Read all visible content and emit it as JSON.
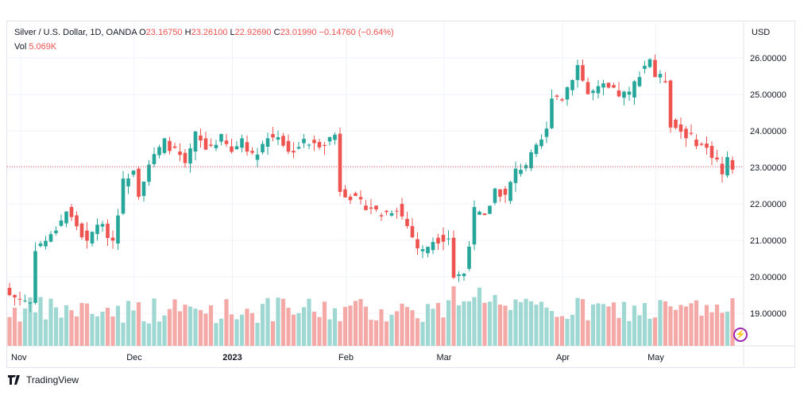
{
  "legend": {
    "symbol": "Silver / U.S. Dollar, 1D, OANDA",
    "open_label": "O",
    "open": "23.16750",
    "high_label": "H",
    "high": "23.26100",
    "low_label": "L",
    "low": "22.92690",
    "close_label": "C",
    "close": "23.01990",
    "change": "−0.14760 (−0.64%)",
    "vol_label": "Vol",
    "vol": "5.069K"
  },
  "currency": "USD",
  "brand": "TradingView",
  "colors": {
    "up": "#26a69a",
    "down": "#ef5350",
    "up_vol": "#9fd8d2",
    "down_vol": "#f4a9a6",
    "grid": "#f0f3fa",
    "price_line": "#ef5350"
  },
  "chart_data": {
    "type": "candlestick",
    "y_ticks": [
      "26.00000",
      "25.00000",
      "24.00000",
      "23.00000",
      "22.00000",
      "21.00000",
      "20.00000",
      "19.00000"
    ],
    "y_tick_values": [
      26,
      25,
      24,
      23,
      22,
      21,
      20,
      19
    ],
    "x_ticks": [
      {
        "label": "Nov",
        "index": 0
      },
      {
        "label": "Dec",
        "index": 22
      },
      {
        "label": "2023",
        "index": 41
      },
      {
        "label": "Feb",
        "index": 63
      },
      {
        "label": "Mar",
        "index": 82
      },
      {
        "label": "Apr",
        "index": 105
      },
      {
        "label": "May",
        "index": 123
      }
    ],
    "last_price": 23.02,
    "close_points": [
      [
        0,
        19.5
      ],
      [
        4,
        19.3
      ],
      [
        5,
        20.8
      ],
      [
        8,
        21.1
      ],
      [
        11,
        21.8
      ],
      [
        13,
        21.4
      ],
      [
        15,
        20.9
      ],
      [
        17,
        21.5
      ],
      [
        20,
        21.0
      ],
      [
        22,
        22.6
      ],
      [
        24,
        23.0
      ],
      [
        25,
        22.3
      ],
      [
        27,
        23.1
      ],
      [
        30,
        23.7
      ],
      [
        33,
        23.3
      ],
      [
        34,
        23.0
      ],
      [
        36,
        23.9
      ],
      [
        38,
        23.5
      ],
      [
        41,
        23.8
      ],
      [
        43,
        23.4
      ],
      [
        45,
        23.8
      ],
      [
        47,
        23.3
      ],
      [
        50,
        23.8
      ],
      [
        52,
        23.9
      ],
      [
        54,
        23.4
      ],
      [
        57,
        23.7
      ],
      [
        59,
        23.6
      ],
      [
        61,
        23.7
      ],
      [
        63,
        23.9
      ],
      [
        64,
        22.4
      ],
      [
        66,
        22.2
      ],
      [
        68,
        22.0
      ],
      [
        70,
        21.9
      ],
      [
        72,
        21.7
      ],
      [
        75,
        21.9
      ],
      [
        77,
        21.4
      ],
      [
        79,
        20.8
      ],
      [
        80,
        20.7
      ],
      [
        82,
        21.0
      ],
      [
        85,
        21.1
      ],
      [
        86,
        20.0
      ],
      [
        88,
        20.1
      ],
      [
        90,
        21.8
      ],
      [
        92,
        21.6
      ],
      [
        94,
        22.4
      ],
      [
        96,
        22.2
      ],
      [
        98,
        22.9
      ],
      [
        100,
        23.1
      ],
      [
        102,
        23.5
      ],
      [
        104,
        24.0
      ],
      [
        105,
        25.0
      ],
      [
        107,
        24.9
      ],
      [
        109,
        25.5
      ],
      [
        110,
        25.8
      ],
      [
        112,
        25.0
      ],
      [
        115,
        25.2
      ],
      [
        118,
        25.0
      ],
      [
        120,
        25.0
      ],
      [
        122,
        25.6
      ],
      [
        124,
        26.0
      ],
      [
        125,
        25.5
      ],
      [
        127,
        25.4
      ],
      [
        128,
        24.2
      ],
      [
        131,
        23.9
      ],
      [
        133,
        23.7
      ],
      [
        135,
        23.5
      ],
      [
        137,
        23.2
      ],
      [
        138,
        22.8
      ],
      [
        139,
        23.2
      ],
      [
        140,
        23.02
      ]
    ]
  }
}
